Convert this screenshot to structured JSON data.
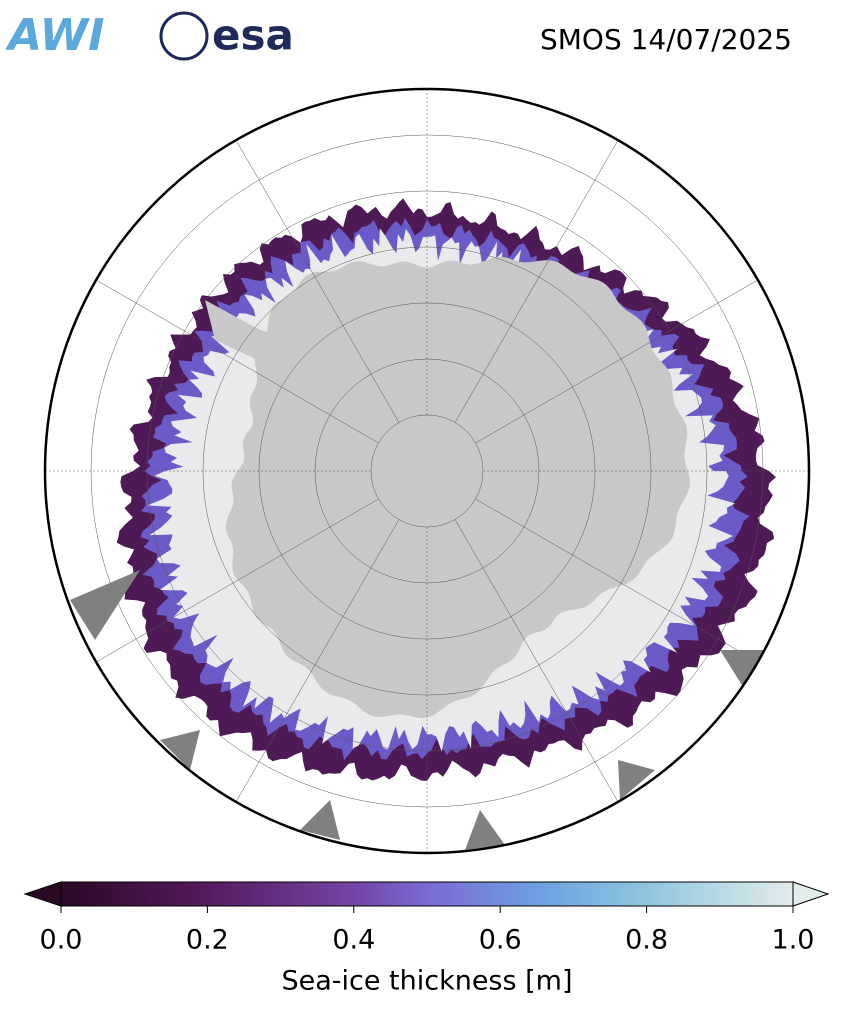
{
  "header": {
    "logos": [
      "AWI",
      "esa"
    ],
    "title": "SMOS 14/07/2025"
  },
  "colorbar": {
    "label": "Sea-ice thickness [m]",
    "lim": [
      0,
      1
    ],
    "ticks": [
      {
        "value": 0,
        "label": "0.0"
      },
      {
        "value": 0.2,
        "label": "0.2"
      },
      {
        "value": 0.4,
        "label": "0.4"
      },
      {
        "value": 0.6,
        "label": "0.6"
      },
      {
        "value": 0.8,
        "label": "0.8"
      },
      {
        "value": 1,
        "label": "1.0"
      }
    ]
  }
}
